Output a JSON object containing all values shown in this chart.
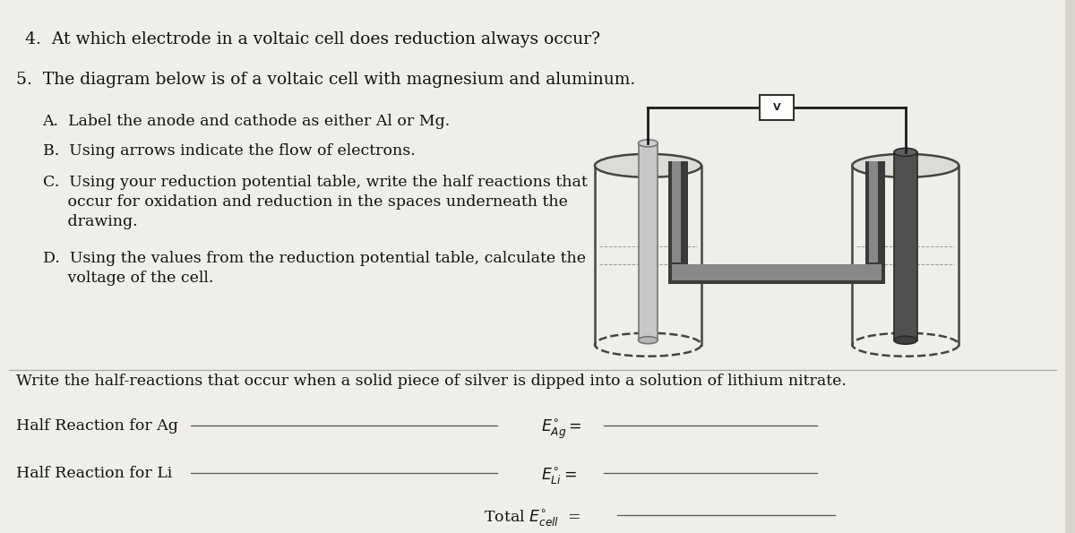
{
  "bg_color": "#d8d5ce",
  "paper_color": "#f0eeea",
  "text_color": "#111111",
  "line_color": "#555555",
  "q4_text": "4.  At which electrode in a voltaic cell does reduction always occur?",
  "q5_text": "5.  The diagram below is of a voltaic cell with magnesium and aluminum.",
  "subA": "A.  Label the anode and cathode as either Al or Mg.",
  "subB": "B.  Using arrows indicate the flow of electrons.",
  "subC_1": "C.  Using your reduction potential table, write the half reactions that",
  "subC_2": "     occur for oxidation and reduction in the spaces underneath the",
  "subC_3": "     drawing.",
  "subD_1": "D.  Using the values from the reduction potential table, calculate the",
  "subD_2": "     voltage of the cell.",
  "write_text": "Write the half-reactions that occur when a solid piece of silver is dipped into a solution of lithium nitrate.",
  "half_ag": "Half Reaction for Ag",
  "half_li": "Half Reaction for Li",
  "total_label": "Total E°cell  ="
}
